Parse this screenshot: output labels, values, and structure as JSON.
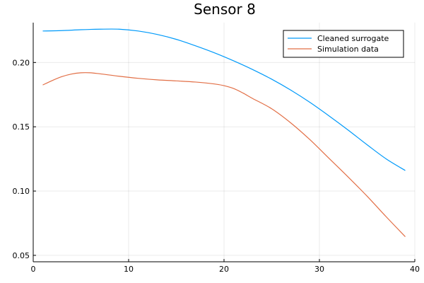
{
  "chart_data": {
    "type": "line",
    "title": "Sensor 8",
    "xlabel": "",
    "ylabel": "",
    "xlim": [
      0,
      40
    ],
    "ylim": [
      0.045,
      0.231
    ],
    "x_ticks": [
      0,
      10,
      20,
      30,
      40
    ],
    "y_ticks": [
      0.05,
      0.1,
      0.15,
      0.2
    ],
    "y_tick_labels": [
      "0.05",
      "0.10",
      "0.15",
      "0.20"
    ],
    "x_tick_labels": [
      "0",
      "10",
      "20",
      "30",
      "40"
    ],
    "grid": true,
    "legend_position": "top-right",
    "series": [
      {
        "name": "Cleaned surrogate",
        "color": "#009AFA",
        "x": [
          1,
          3,
          5,
          7,
          9,
          11,
          13,
          15,
          17,
          19,
          21,
          23,
          25,
          27,
          29,
          31,
          33,
          35,
          37,
          39
        ],
        "y": [
          0.2245,
          0.2248,
          0.2255,
          0.2259,
          0.2259,
          0.2245,
          0.2218,
          0.218,
          0.213,
          0.2075,
          0.2013,
          0.1945,
          0.187,
          0.1785,
          0.169,
          0.1585,
          0.1475,
          0.136,
          0.125,
          0.116
        ]
      },
      {
        "name": "Simulation data",
        "color": "#E26F46",
        "x": [
          1,
          2,
          3,
          4,
          5,
          6,
          7,
          9,
          11,
          13,
          15,
          17,
          19,
          20,
          21,
          22,
          23,
          25,
          27,
          29,
          31,
          33,
          35,
          37,
          39
        ],
        "y": [
          0.1825,
          0.186,
          0.189,
          0.191,
          0.192,
          0.192,
          0.1912,
          0.1893,
          0.1877,
          0.1865,
          0.1857,
          0.1848,
          0.1833,
          0.182,
          0.1798,
          0.1762,
          0.172,
          0.164,
          0.153,
          0.14,
          0.1255,
          0.111,
          0.096,
          0.08,
          0.0645
        ]
      }
    ]
  }
}
